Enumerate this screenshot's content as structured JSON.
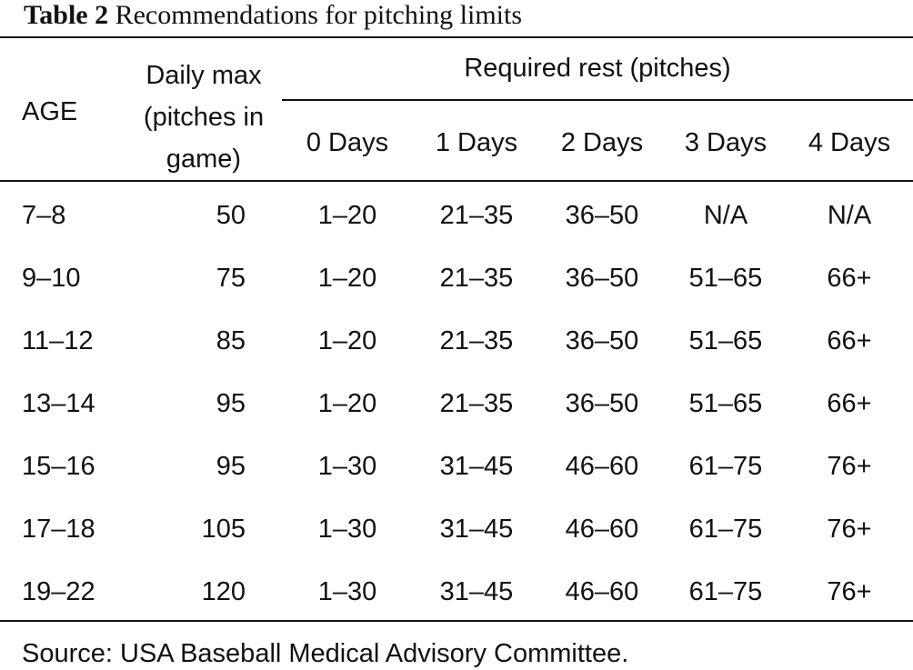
{
  "caption": {
    "label": "Table 2",
    "text": "Recommendations for pitching limits"
  },
  "headers": {
    "age": "AGE",
    "daily_max_lines": [
      "Daily max",
      "(pitches in",
      "game)"
    ],
    "required_rest": "Required rest (pitches)",
    "rest_days": [
      "0 Days",
      "1 Days",
      "2 Days",
      "3 Days",
      "4 Days"
    ]
  },
  "rows": [
    {
      "age": "7–8",
      "daily_max": "50",
      "rest": [
        "1–20",
        "21–35",
        "36–50",
        "N/A",
        "N/A"
      ]
    },
    {
      "age": "9–10",
      "daily_max": "75",
      "rest": [
        "1–20",
        "21–35",
        "36–50",
        "51–65",
        "66+"
      ]
    },
    {
      "age": "11–12",
      "daily_max": "85",
      "rest": [
        "1–20",
        "21–35",
        "36–50",
        "51–65",
        "66+"
      ]
    },
    {
      "age": "13–14",
      "daily_max": "95",
      "rest": [
        "1–20",
        "21–35",
        "36–50",
        "51–65",
        "66+"
      ]
    },
    {
      "age": "15–16",
      "daily_max": "95",
      "rest": [
        "1–30",
        "31–45",
        "46–60",
        "61–75",
        "76+"
      ]
    },
    {
      "age": "17–18",
      "daily_max": "105",
      "rest": [
        "1–30",
        "31–45",
        "46–60",
        "61–75",
        "76+"
      ]
    },
    {
      "age": "19–22",
      "daily_max": "120",
      "rest": [
        "1–30",
        "31–45",
        "46–60",
        "61–75",
        "76+"
      ]
    }
  ],
  "source": "Source: USA Baseball Medical Advisory Committee."
}
